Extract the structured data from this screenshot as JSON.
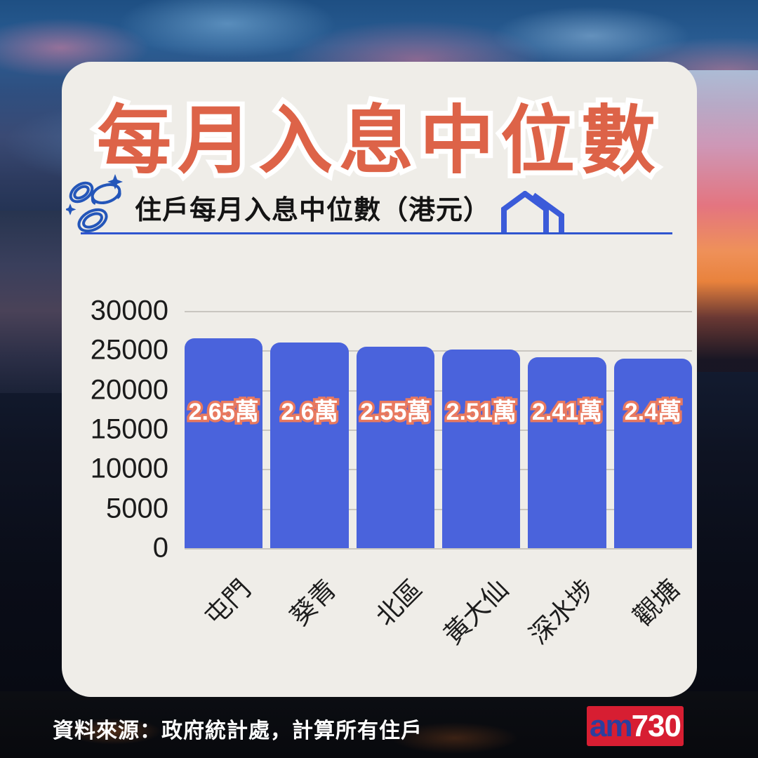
{
  "title": "每月入息中位數",
  "subtitle": {
    "text": "住戶每月入息中位數（港元）",
    "left_icon": "coins-icon",
    "right_icon": "house-icon"
  },
  "chart_data": {
    "type": "bar",
    "categories": [
      "屯門",
      "葵青",
      "北區",
      "黃大仙",
      "深水埗",
      "觀塘"
    ],
    "values": [
      26500,
      26000,
      25500,
      25100,
      24100,
      24000
    ],
    "bar_labels": [
      "2.65萬",
      "2.6萬",
      "2.55萬",
      "2.51萬",
      "2.41萬",
      "2.4萬"
    ],
    "title": "住戶每月入息中位數（港元）",
    "xlabel": "",
    "ylabel": "",
    "ylim": [
      0,
      30000
    ],
    "yticks": [
      0,
      5000,
      10000,
      15000,
      20000,
      25000,
      30000
    ],
    "grid": true,
    "legend": "none",
    "bar_color": "#4a63dc",
    "value_label_fill": "#ffffff",
    "value_label_outline": "#e8795f"
  },
  "source": "資料來源：政府統計處，計算所有住戶",
  "logo": {
    "am": "am",
    "number": "730"
  },
  "colors": {
    "card_background": "#efede8",
    "title_color": "#dd6348",
    "title_outline": "#ffffff",
    "accent_blue": "#2f55cf",
    "bar_blue": "#4a63dc",
    "logo_red": "#d71e32",
    "logo_blue": "#2b3f9e",
    "axis_text": "#1b1b1b"
  }
}
